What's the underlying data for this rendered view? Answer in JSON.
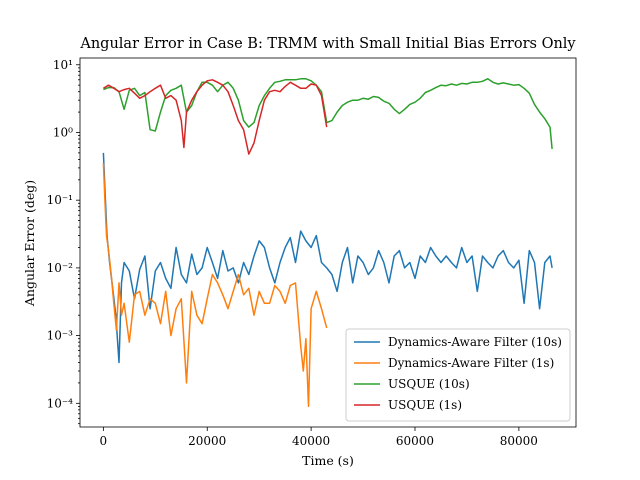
{
  "chart_data": {
    "type": "line",
    "title": "Angular Error in Case B: TRMM with Small Initial Bias Errors Only",
    "xlabel": "Time (s)",
    "ylabel": "Angular Error (deg)",
    "xlim": [
      -4500,
      91000
    ],
    "ylim_log10": [
      -4.35,
      1.1
    ],
    "yscale": "log",
    "grid": false,
    "legend_position": "lower-right",
    "x_ticks": [
      0,
      20000,
      40000,
      60000,
      80000
    ],
    "x_tick_labels": [
      "0",
      "20000",
      "40000",
      "60000",
      "80000"
    ],
    "y_ticks": [
      0.0001,
      0.001,
      0.01,
      0.1,
      1,
      10
    ],
    "y_tick_labels": [
      "10⁻⁴",
      "10⁻³",
      "10⁻²",
      "10⁻¹",
      "10⁰",
      "10¹"
    ],
    "series": [
      {
        "name": "Dynamics-Aware Filter (10s)",
        "color": "#1f77b4",
        "x": [
          0,
          300,
          700,
          1200,
          1800,
          2400,
          3000,
          3500,
          4000,
          5000,
          6000,
          7000,
          8000,
          9000,
          10000,
          11000,
          12000,
          13000,
          14000,
          15000,
          16000,
          17000,
          18000,
          19000,
          20000,
          21000,
          22000,
          23000,
          24000,
          25000,
          26000,
          27000,
          28000,
          29000,
          30000,
          31000,
          32000,
          33000,
          34000,
          35000,
          36000,
          37000,
          38000,
          39000,
          40000,
          41000,
          42000,
          43000,
          44000,
          45000,
          46000,
          47000,
          48000,
          49000,
          50000,
          51000,
          52000,
          53000,
          54000,
          55000,
          56000,
          57000,
          58000,
          59000,
          60000,
          61000,
          62000,
          63000,
          64000,
          65000,
          66000,
          67000,
          68000,
          69000,
          70000,
          71000,
          72000,
          73000,
          74000,
          75000,
          76000,
          77000,
          78000,
          79000,
          80000,
          81000,
          82000,
          83000,
          84000,
          85000,
          86000,
          86400
        ],
        "values": [
          0.5,
          0.15,
          0.03,
          0.012,
          0.005,
          0.002,
          0.0004,
          0.006,
          0.012,
          0.009,
          0.0035,
          0.0095,
          0.015,
          0.0025,
          0.009,
          0.012,
          0.007,
          0.005,
          0.02,
          0.008,
          0.006,
          0.016,
          0.008,
          0.01,
          0.02,
          0.012,
          0.007,
          0.018,
          0.009,
          0.01,
          0.006,
          0.012,
          0.008,
          0.015,
          0.025,
          0.02,
          0.01,
          0.006,
          0.012,
          0.02,
          0.028,
          0.012,
          0.035,
          0.025,
          0.02,
          0.03,
          0.012,
          0.01,
          0.008,
          0.0045,
          0.012,
          0.02,
          0.006,
          0.015,
          0.012,
          0.008,
          0.01,
          0.018,
          0.012,
          0.006,
          0.015,
          0.018,
          0.01,
          0.012,
          0.007,
          0.015,
          0.012,
          0.02,
          0.015,
          0.012,
          0.015,
          0.012,
          0.01,
          0.02,
          0.012,
          0.015,
          0.0045,
          0.015,
          0.012,
          0.01,
          0.015,
          0.018,
          0.012,
          0.01,
          0.013,
          0.003,
          0.018,
          0.012,
          0.0025,
          0.012,
          0.015,
          0.01
        ]
      },
      {
        "name": "Dynamics-Aware Filter (1s)",
        "color": "#ff7f0e",
        "x": [
          0,
          300,
          600,
          1000,
          1500,
          2000,
          2500,
          3000,
          3500,
          4000,
          5000,
          6000,
          7000,
          8000,
          9000,
          10000,
          11000,
          12000,
          13000,
          14000,
          15000,
          16000,
          17000,
          18000,
          19000,
          20000,
          21000,
          22000,
          23000,
          24000,
          25000,
          26000,
          27000,
          28000,
          29000,
          30000,
          31000,
          32000,
          33000,
          34000,
          35000,
          36000,
          37000,
          38000,
          38500,
          39000,
          39500,
          40000,
          41000,
          42000,
          43000
        ],
        "values": [
          0.35,
          0.1,
          0.03,
          0.018,
          0.008,
          0.003,
          0.0012,
          0.006,
          0.002,
          0.003,
          0.0008,
          0.004,
          0.0045,
          0.002,
          0.0035,
          0.003,
          0.0015,
          0.0045,
          0.001,
          0.0025,
          0.0035,
          0.0002,
          0.0045,
          0.002,
          0.0015,
          0.0035,
          0.008,
          0.006,
          0.004,
          0.0025,
          0.0045,
          0.008,
          0.004,
          0.005,
          0.002,
          0.0045,
          0.003,
          0.003,
          0.0055,
          0.0045,
          0.003,
          0.0055,
          0.006,
          0.0007,
          0.0003,
          0.0009,
          9e-05,
          0.0025,
          0.0045,
          0.0025,
          0.0013
        ]
      },
      {
        "name": "USQUE (10s)",
        "color": "#2ca02c",
        "x": [
          0,
          1000,
          2000,
          3000,
          4000,
          5000,
          6000,
          7000,
          8000,
          9000,
          10000,
          11000,
          12000,
          13000,
          14000,
          15000,
          16000,
          17000,
          18000,
          19000,
          20000,
          21000,
          22000,
          23000,
          24000,
          25000,
          26000,
          27000,
          28000,
          29000,
          30000,
          31000,
          32000,
          33000,
          34000,
          35000,
          36000,
          37000,
          38000,
          39000,
          40000,
          41000,
          42000,
          43000,
          44000,
          45000,
          46000,
          47000,
          48000,
          49000,
          50000,
          51000,
          52000,
          53000,
          54000,
          55000,
          56000,
          57000,
          58000,
          59000,
          60000,
          61000,
          62000,
          63000,
          64000,
          65000,
          66000,
          67000,
          68000,
          69000,
          70000,
          71000,
          72000,
          73000,
          74000,
          75000,
          76000,
          77000,
          78000,
          79000,
          80000,
          81000,
          82000,
          83000,
          84000,
          85000,
          86000,
          86400
        ],
        "values": [
          4.3,
          4.6,
          4.6,
          4.0,
          2.2,
          4.2,
          4.5,
          3.5,
          3.9,
          1.1,
          1.05,
          2.0,
          3.5,
          4.2,
          4.5,
          5.0,
          2.0,
          2.5,
          4.0,
          5.5,
          5.5,
          5.0,
          4.0,
          5.0,
          5.5,
          4.5,
          3.0,
          1.5,
          1.2,
          1.4,
          2.5,
          3.5,
          4.5,
          5.5,
          5.7,
          6.0,
          6.0,
          6.0,
          6.2,
          6.2,
          5.8,
          5.0,
          4.0,
          1.4,
          1.5,
          2.0,
          2.5,
          2.8,
          3.0,
          3.0,
          3.2,
          3.1,
          3.4,
          3.3,
          2.9,
          2.7,
          2.2,
          1.9,
          2.2,
          2.6,
          2.8,
          3.2,
          3.9,
          4.2,
          4.6,
          5.0,
          4.9,
          5.2,
          5.0,
          5.3,
          5.2,
          5.5,
          5.5,
          5.7,
          6.2,
          5.5,
          5.2,
          5.4,
          5.2,
          5.0,
          5.1,
          4.5,
          3.8,
          2.6,
          2.0,
          1.6,
          1.2,
          0.57
        ]
      },
      {
        "name": "USQUE (1s)",
        "color": "#d62728",
        "x": [
          0,
          1000,
          2000,
          3000,
          4000,
          5000,
          6000,
          7000,
          8000,
          9000,
          10000,
          11000,
          12000,
          13000,
          14000,
          15000,
          15500,
          16000,
          17000,
          18000,
          19000,
          20000,
          21000,
          22000,
          23000,
          24000,
          25000,
          26000,
          27000,
          28000,
          29000,
          30000,
          31000,
          32000,
          33000,
          34000,
          35000,
          36000,
          37000,
          38000,
          39000,
          40000,
          41000,
          42000,
          43000
        ],
        "values": [
          4.5,
          5.0,
          4.5,
          4.0,
          4.3,
          4.5,
          3.8,
          3.2,
          3.5,
          4.0,
          4.5,
          5.0,
          3.2,
          3.5,
          3.0,
          1.5,
          0.6,
          2.0,
          3.0,
          4.0,
          5.0,
          5.8,
          6.0,
          5.5,
          5.0,
          4.0,
          2.5,
          1.5,
          1.1,
          0.48,
          0.7,
          1.5,
          3.0,
          4.0,
          4.2,
          4.0,
          4.8,
          5.5,
          5.0,
          4.5,
          4.5,
          5.2,
          5.0,
          3.5,
          1.2
        ]
      }
    ]
  }
}
